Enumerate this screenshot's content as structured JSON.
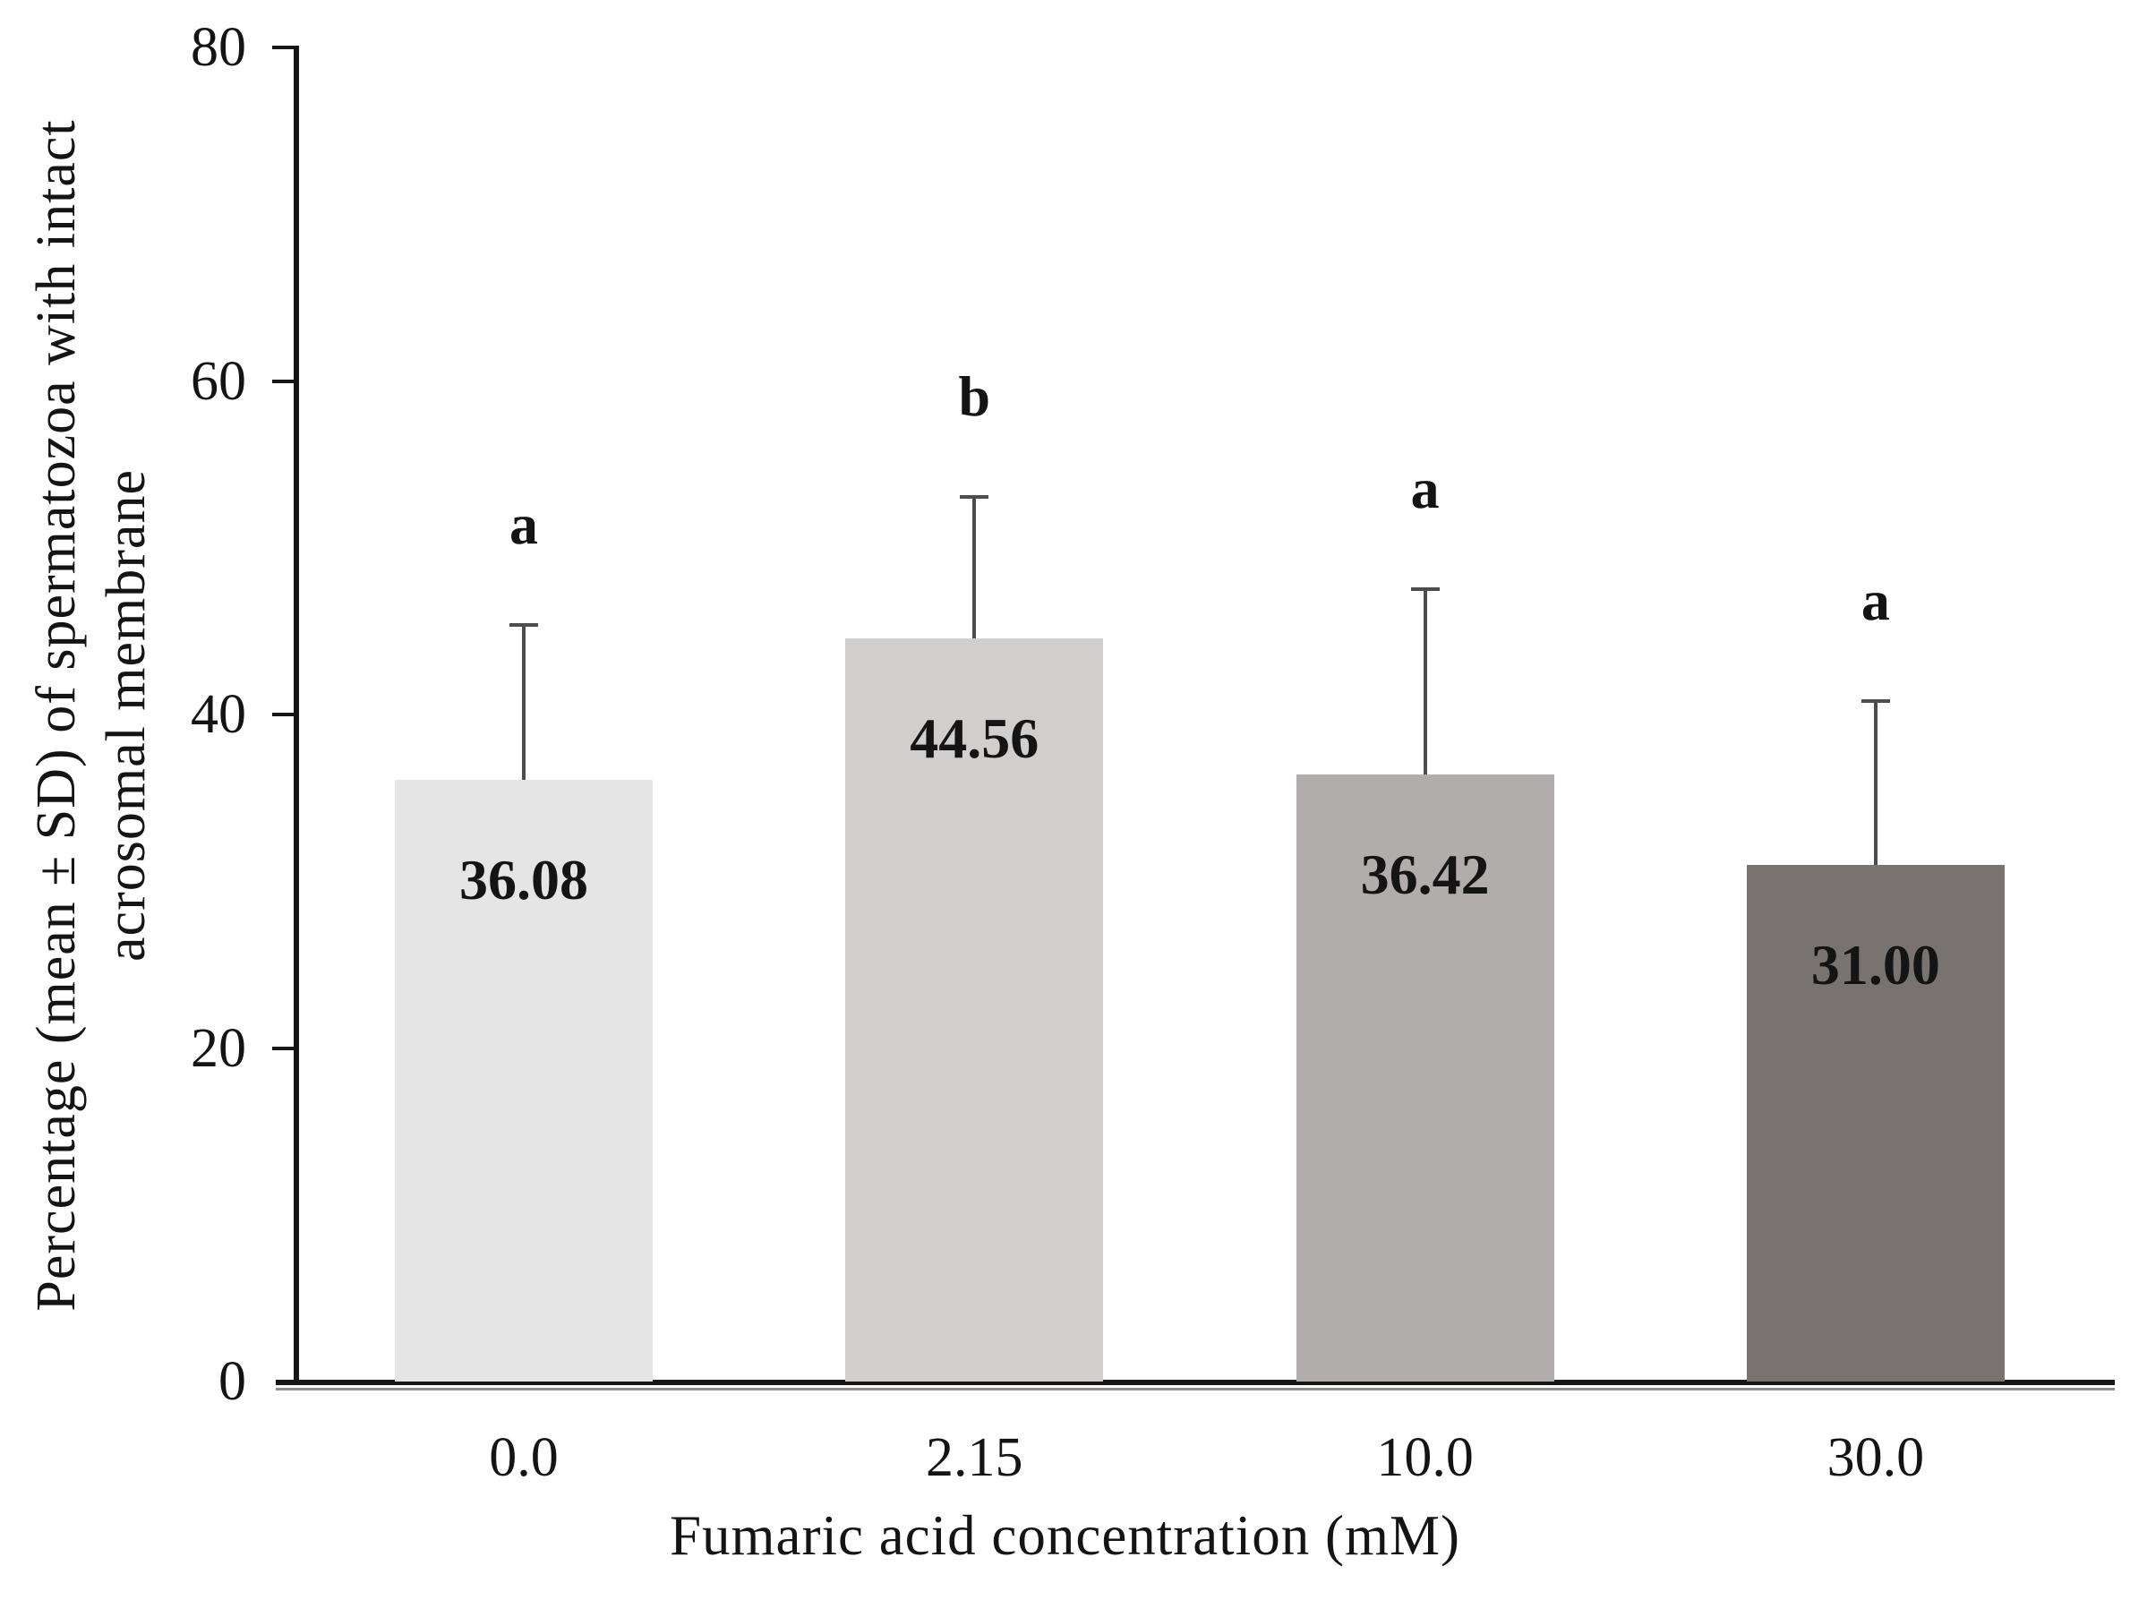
{
  "chart_data": {
    "type": "bar",
    "title": "",
    "xlabel": "Fumaric acid concentration (mM)",
    "ylabel": "Percentage (mean ± SD) of spermatozoa with intact acrosomal membrane",
    "ylabel_lines": [
      "Percentage  (mean ± SD) of spermatozoa with intact",
      "acrosomal membrane"
    ],
    "categories": [
      "0.0",
      "2.15",
      "10.0",
      "30.0"
    ],
    "values": [
      36.08,
      44.56,
      36.42,
      31.0
    ],
    "value_labels": [
      "36.08",
      "44.56",
      "36.42",
      "31.00"
    ],
    "sd_upper": [
      9.3,
      8.5,
      11.1,
      9.8
    ],
    "sig_letters": [
      "a",
      "b",
      "a",
      "a"
    ],
    "bar_colors": [
      "#e6e5e5",
      "#d1cfce",
      "#b1adac",
      "#787271"
    ],
    "yticks": [
      "0",
      "20",
      "40",
      "60",
      "80"
    ],
    "ylim": [
      0,
      80
    ],
    "grid": false,
    "legend": null,
    "error_bar_color": "#4d4d4d",
    "axis_color": "#161616"
  }
}
